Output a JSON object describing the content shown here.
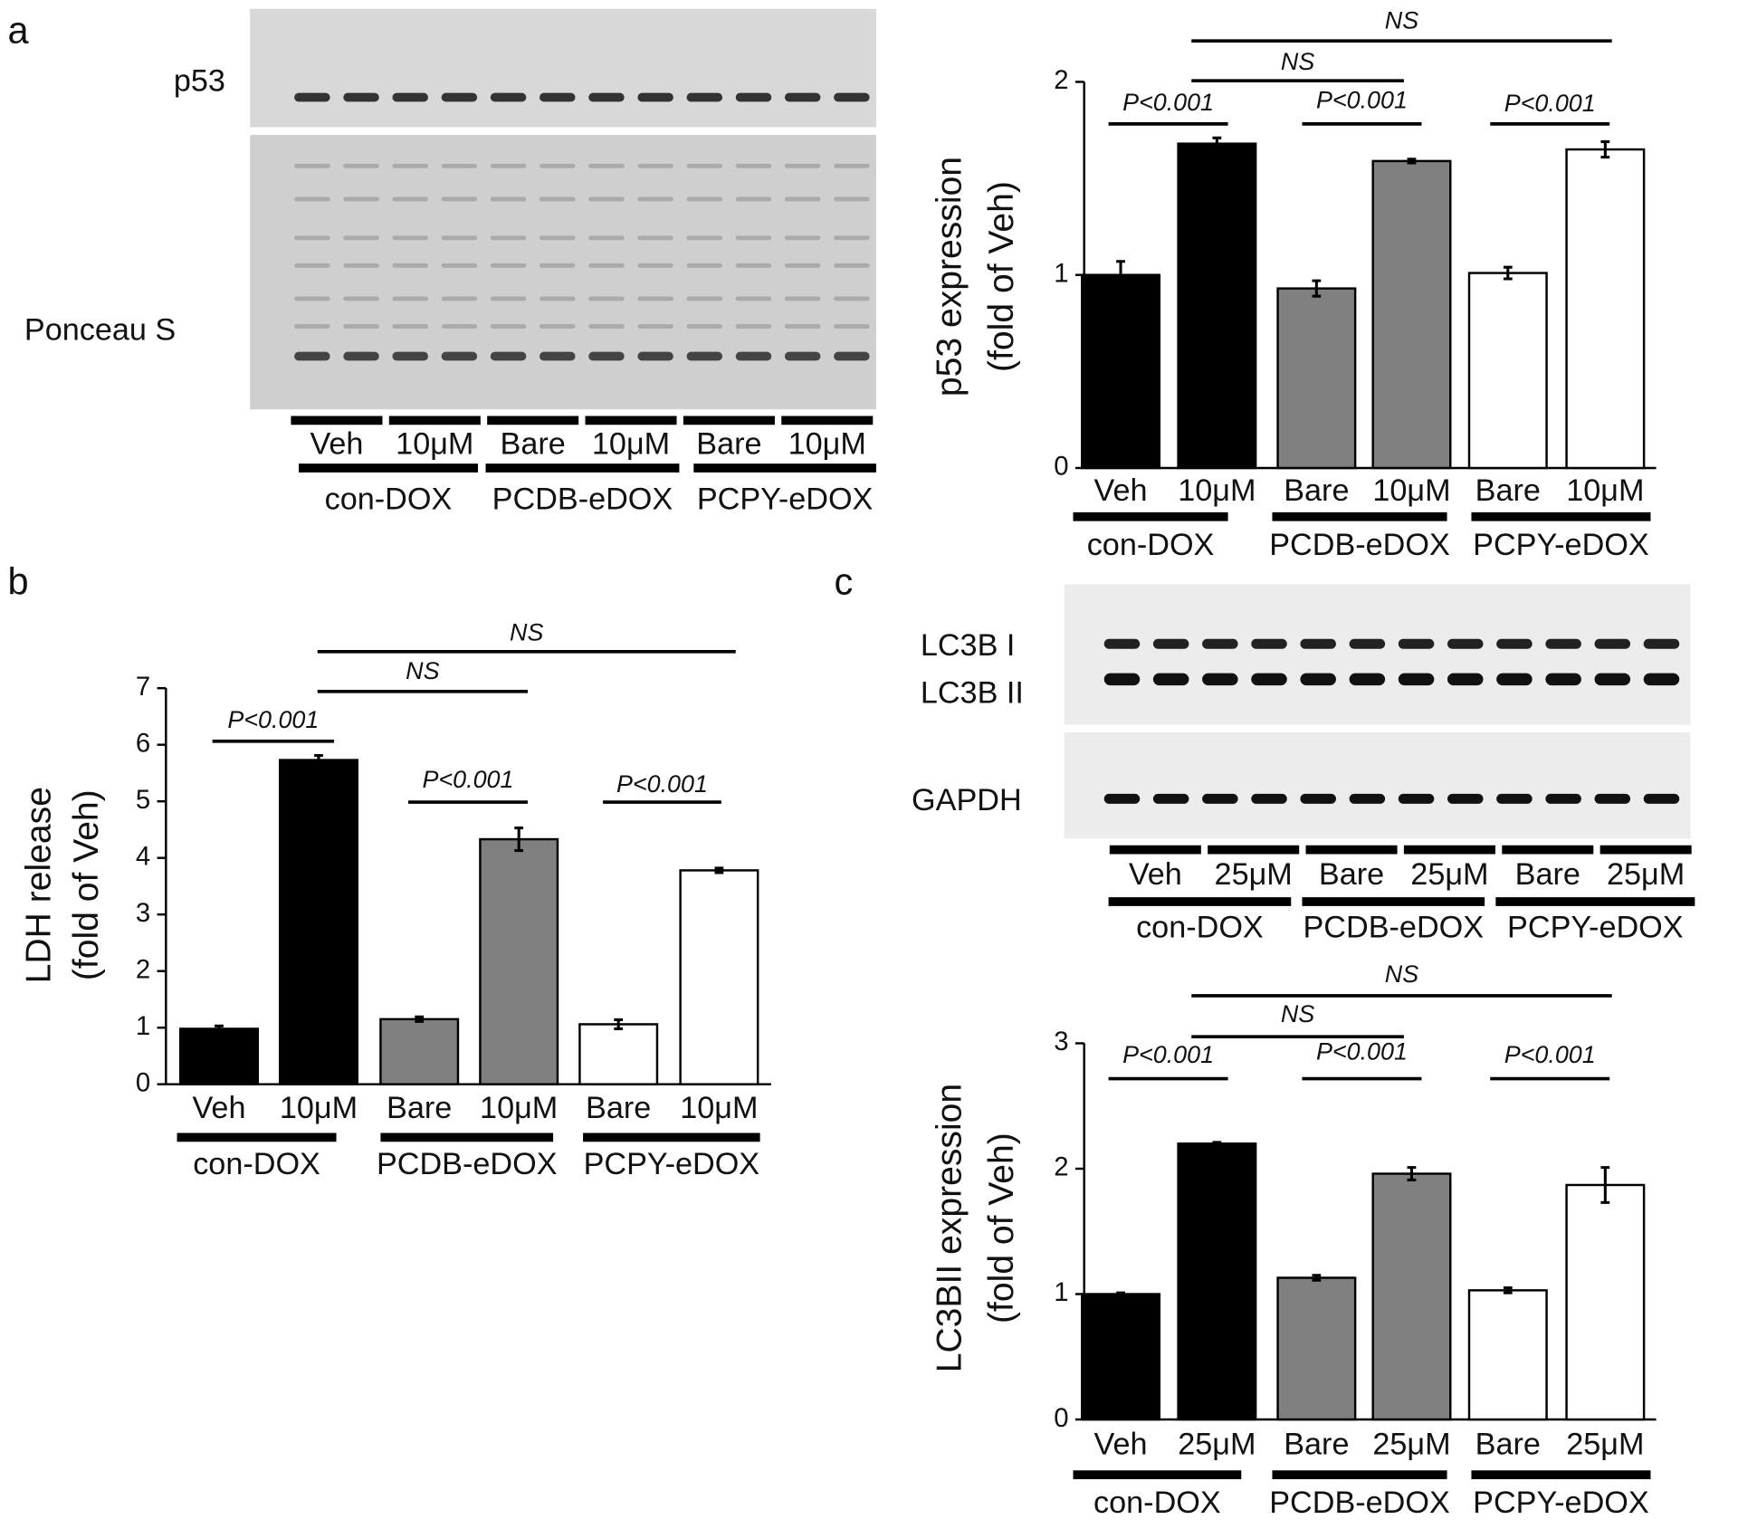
{
  "panel_labels": [
    "a",
    "b",
    "c"
  ],
  "blots": [
    {
      "labels": [
        "p53",
        "Ponceau S"
      ],
      "lanes": [
        "Veh",
        "10μM",
        "Bare",
        "10μM",
        "Bare",
        "10μM"
      ],
      "groups": [
        "con-DOX",
        "PCDB-eDOX",
        "PCPY-eDOX"
      ]
    },
    {
      "labels": [
        "LC3B I",
        "LC3B II",
        "GAPDH"
      ],
      "lanes": [
        "Veh",
        "25μM",
        "Bare",
        "25μM",
        "Bare",
        "25μM"
      ],
      "groups": [
        "con-DOX",
        "PCDB-eDOX",
        "PCPY-eDOX"
      ]
    }
  ],
  "chart_data": [
    {
      "type": "bar",
      "ylabel": [
        "p53 expression",
        "(fold of Veh)"
      ],
      "categories": [
        "Veh",
        "10μM",
        "Bare",
        "10μM",
        "Bare",
        "10μM"
      ],
      "groups": [
        "con-DOX",
        "PCDB-eDOX",
        "PCPY-eDOX"
      ],
      "values": [
        1.0,
        1.68,
        0.93,
        1.59,
        1.01,
        1.65
      ],
      "errors": [
        0.07,
        0.03,
        0.04,
        0.01,
        0.03,
        0.04
      ],
      "colors": [
        "#000000",
        "#000000",
        "#808080",
        "#808080",
        "#ffffff",
        "#ffffff"
      ],
      "ylim": [
        0,
        2
      ],
      "yticks": [
        0,
        1,
        2
      ],
      "annotations": [
        "P<0.001",
        "P<0.001",
        "P<0.001",
        "NS",
        "NS"
      ]
    },
    {
      "type": "bar",
      "ylabel": [
        "LDH release",
        "(fold of Veh)"
      ],
      "categories": [
        "Veh",
        "10μM",
        "Bare",
        "10μM",
        "Bare",
        "10μM"
      ],
      "groups": [
        "con-DOX",
        "PCDB-eDOX",
        "PCPY-eDOX"
      ],
      "values": [
        0.98,
        5.73,
        1.15,
        4.33,
        1.06,
        3.78
      ],
      "errors": [
        0.05,
        0.08,
        0.04,
        0.2,
        0.08,
        0.04
      ],
      "colors": [
        "#000000",
        "#000000",
        "#808080",
        "#808080",
        "#ffffff",
        "#ffffff"
      ],
      "ylim": [
        0,
        7
      ],
      "yticks": [
        0,
        1,
        2,
        3,
        4,
        5,
        6,
        7
      ],
      "annotations": [
        "P<0.001",
        "P<0.001",
        "P<0.001",
        "NS",
        "NS"
      ]
    },
    {
      "type": "bar",
      "ylabel": [
        "LC3BII expression",
        "(fold of Veh)"
      ],
      "categories": [
        "Veh",
        "25μM",
        "Bare",
        "25μM",
        "Bare",
        "25μM"
      ],
      "groups": [
        "con-DOX",
        "PCDB-eDOX",
        "PCPY-eDOX"
      ],
      "values": [
        1.0,
        2.2,
        1.13,
        1.96,
        1.03,
        1.87
      ],
      "errors": [
        0.01,
        0.01,
        0.02,
        0.05,
        0.02,
        0.14
      ],
      "colors": [
        "#000000",
        "#000000",
        "#808080",
        "#808080",
        "#ffffff",
        "#ffffff"
      ],
      "ylim": [
        0,
        3
      ],
      "yticks": [
        0,
        1,
        2,
        3
      ],
      "annotations": [
        "P<0.001",
        "P<0.001",
        "P<0.001",
        "NS",
        "NS"
      ]
    }
  ]
}
